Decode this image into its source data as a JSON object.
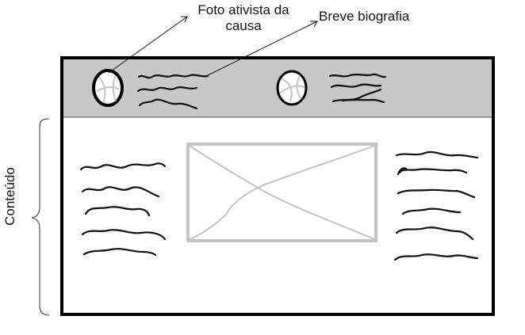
{
  "annotations": {
    "foto_line1": "Foto ativista da",
    "foto_line2": "causa",
    "biografia": "Breve biografia",
    "conteudo": "Conteúdo"
  },
  "colors": {
    "header_band": "#c8c8c8",
    "frame": "#000000",
    "placeholder": "#c4c4c4"
  },
  "icons": {
    "activist_photo": "circle-photo-icon",
    "image_placeholder": "image-placeholder-icon",
    "brace": "curly-brace"
  }
}
